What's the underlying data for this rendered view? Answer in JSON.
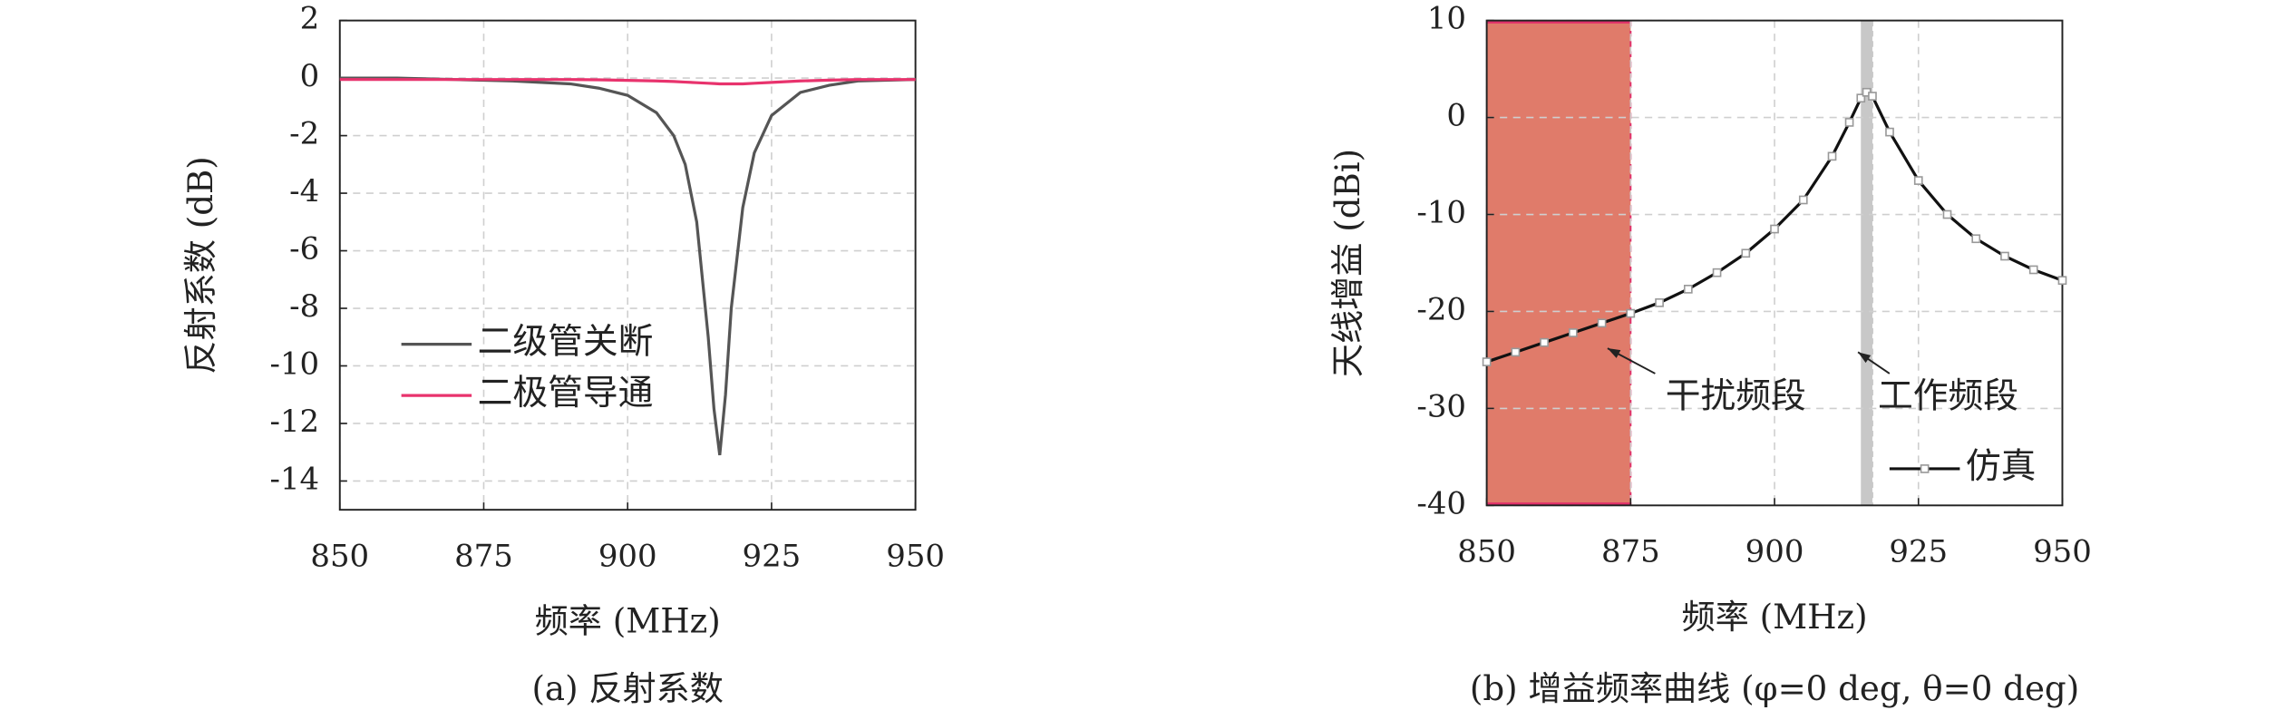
{
  "chart_data": [
    {
      "type": "line",
      "title": "(a) 反射系数",
      "xlabel": "频率 (MHz)",
      "ylabel": "反射系数 (dB)",
      "x": [
        850,
        860,
        870,
        880,
        890,
        895,
        900,
        905,
        908,
        910,
        912,
        914,
        915,
        916,
        917,
        918,
        920,
        922,
        925,
        930,
        935,
        940,
        950
      ],
      "series": [
        {
          "name": "二级管关断",
          "color": "#555555",
          "values": [
            0,
            0,
            -0.05,
            -0.1,
            -0.2,
            -0.35,
            -0.6,
            -1.2,
            -2,
            -3,
            -5,
            -9,
            -11.5,
            -13.1,
            -11,
            -8,
            -4.5,
            -2.6,
            -1.3,
            -0.5,
            -0.25,
            -0.1,
            -0.05
          ]
        },
        {
          "name": "二极管导通",
          "color": "#e8336d",
          "values": [
            -0.05,
            -0.05,
            -0.05,
            -0.05,
            -0.05,
            -0.06,
            -0.08,
            -0.1,
            -0.12,
            -0.14,
            -0.16,
            -0.18,
            -0.19,
            -0.2,
            -0.2,
            -0.2,
            -0.2,
            -0.18,
            -0.15,
            -0.1,
            -0.07,
            -0.05,
            -0.05
          ]
        }
      ],
      "xlim": [
        850,
        950
      ],
      "ylim": [
        -15,
        2
      ],
      "xticks": [
        850,
        875,
        900,
        925,
        950
      ],
      "yticks": [
        2,
        0,
        -2,
        -4,
        -6,
        -8,
        -10,
        -12,
        -14
      ],
      "grid": true,
      "legend": "center-left"
    },
    {
      "type": "line",
      "title": "(b) 增益频率曲线 (φ=0 deg, θ=0 deg)",
      "xlabel": "频率 (MHz)",
      "ylabel": "天线增益 (dBi)",
      "x": [
        850,
        855,
        860,
        865,
        870,
        875,
        880,
        885,
        890,
        895,
        900,
        905,
        910,
        913,
        915,
        916,
        917,
        920,
        925,
        930,
        935,
        940,
        945,
        950
      ],
      "series": [
        {
          "name": "仿真",
          "color": "#111111",
          "marker_color": "#999999",
          "values": [
            -25.2,
            -24.2,
            -23.2,
            -22.2,
            -21.2,
            -20.2,
            -19.1,
            -17.7,
            -16,
            -14,
            -11.5,
            -8.5,
            -4,
            -0.5,
            2,
            2.6,
            2.2,
            -1.5,
            -6.5,
            -10,
            -12.5,
            -14.3,
            -15.7,
            -16.8
          ]
        }
      ],
      "shaded_regions": [
        {
          "x": [
            850,
            875
          ],
          "color": "#e07b6a",
          "edge_color": "#e0306a"
        },
        {
          "x": [
            915,
            917
          ],
          "color": "#c8c8c8",
          "edge_color": "#c8c8c8"
        }
      ],
      "annotations": [
        {
          "text": "干扰频段",
          "xy": [
            871,
            -23.8
          ]
        },
        {
          "text": "工作频段",
          "xy": [
            914.5,
            -24.2
          ]
        }
      ],
      "xlim": [
        850,
        950
      ],
      "ylim": [
        -40,
        10
      ],
      "xticks": [
        850,
        875,
        900,
        925,
        950
      ],
      "yticks": [
        10,
        0,
        -10,
        -20,
        -30,
        -40
      ],
      "grid": true,
      "legend": "lower-right"
    }
  ]
}
